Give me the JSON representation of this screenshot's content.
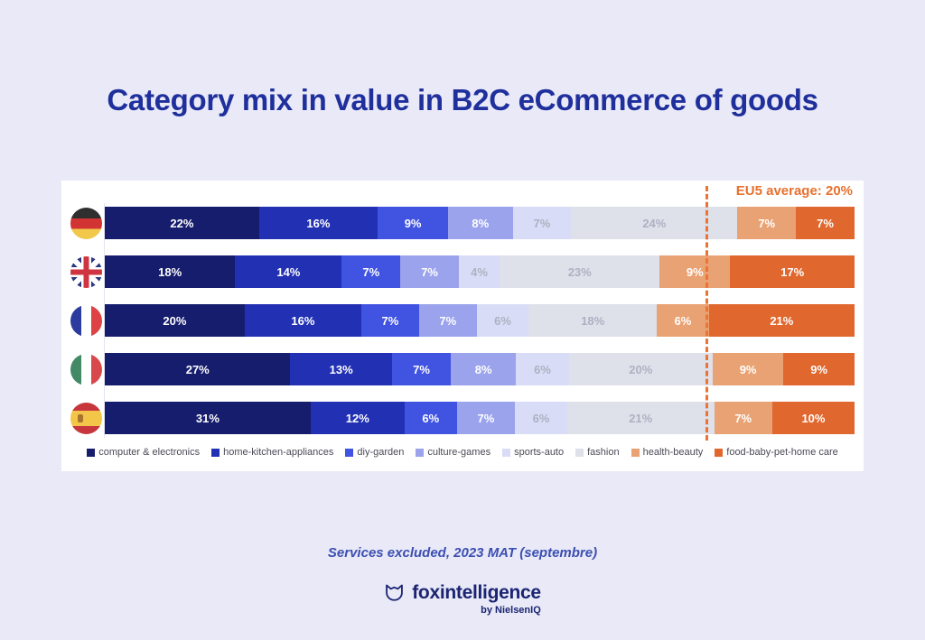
{
  "title": "Category mix in value in B2C eCommerce of goods",
  "annotation": {
    "label": "EU5 average: 20%"
  },
  "chart_data": {
    "type": "bar",
    "stacked": true,
    "orientation": "horizontal",
    "unit": "%",
    "series_labels": [
      "computer & electronics",
      "home-kitchen-appliances",
      "diy-garden",
      "culture-games",
      "sports-auto",
      "fashion",
      "health-beauty",
      "food-baby-pet-home care"
    ],
    "series_colors": [
      "#161d6d",
      "#2230b3",
      "#4153e1",
      "#9aa3ec",
      "#d9dcf6",
      "#dee0ea",
      "#e9a273",
      "#e0672d"
    ],
    "series_label_colors": [
      "#ffffff",
      "#ffffff",
      "#ffffff",
      "#ffffff",
      "#aeb1c2",
      "#aeb1c2",
      "#ffffff",
      "#ffffff"
    ],
    "eu5_average_line_position_pct": 80,
    "rows": [
      {
        "country": "Germany",
        "flag": "de",
        "values": [
          22,
          16,
          9,
          8,
          7,
          24,
          7,
          7
        ]
      },
      {
        "country": "United Kingdom",
        "flag": "gb",
        "values": [
          18,
          14,
          7,
          7,
          4,
          23,
          9,
          17
        ]
      },
      {
        "country": "France",
        "flag": "fr",
        "values": [
          20,
          16,
          7,
          7,
          6,
          18,
          6,
          21
        ]
      },
      {
        "country": "Italy",
        "flag": "it",
        "values": [
          27,
          13,
          7,
          8,
          6,
          20,
          9,
          9
        ]
      },
      {
        "country": "Spain",
        "flag": "es",
        "values": [
          31,
          12,
          6,
          7,
          6,
          21,
          7,
          10
        ]
      }
    ]
  },
  "footnote": "Services excluded, 2023 MAT (septembre)",
  "brand": {
    "name": "foxintelligence",
    "byline": "by NielsenIQ"
  },
  "colors": {
    "page_background": "#e9e9f7",
    "card_background": "#ffffff",
    "title_blue": "#1f2f9c",
    "accent_orange": "#e8702e",
    "footnote_blue": "#3c4fb1",
    "logo_navy": "#1a2472"
  }
}
